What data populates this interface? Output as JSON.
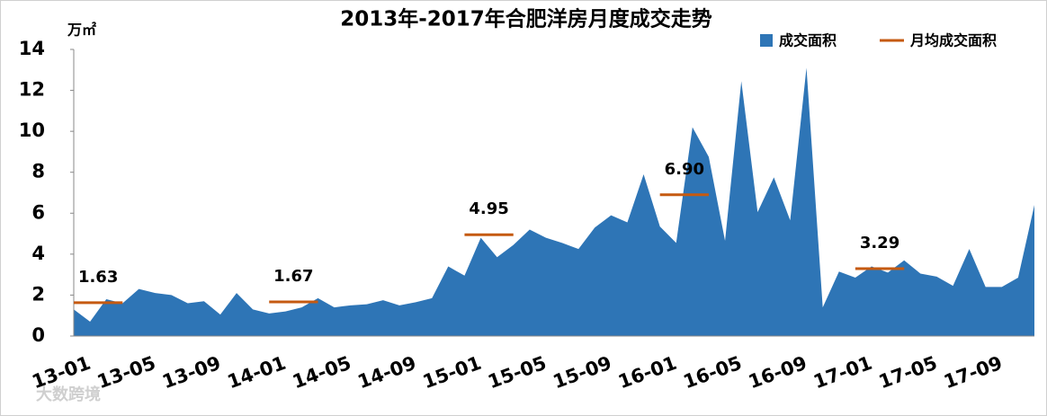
{
  "chart_data": {
    "type": "area",
    "title": "2013年-2017年合肥洋房月度成交走势",
    "y_unit": "万㎡",
    "watermark": "大数跨境",
    "categories": [
      "13-01",
      null,
      null,
      null,
      "13-05",
      null,
      null,
      null,
      "13-09",
      null,
      null,
      null,
      "14-01",
      null,
      null,
      null,
      "14-05",
      null,
      null,
      null,
      "14-09",
      null,
      null,
      null,
      "15-01",
      null,
      null,
      null,
      "15-05",
      null,
      null,
      null,
      "15-09",
      null,
      null,
      null,
      "16-01",
      null,
      null,
      null,
      "16-05",
      null,
      null,
      null,
      "16-09",
      null,
      null,
      null,
      "17-01",
      null,
      null,
      null,
      "17-05",
      null,
      null,
      null,
      "17-09",
      null,
      null,
      null
    ],
    "series": [
      {
        "name": "成交面积",
        "color": "#2e75b6",
        "values": [
          1.3,
          0.7,
          1.8,
          1.6,
          2.3,
          2.1,
          2.0,
          1.6,
          1.7,
          1.05,
          2.1,
          1.3,
          1.1,
          1.2,
          1.4,
          1.85,
          1.4,
          1.5,
          1.55,
          1.75,
          1.5,
          1.65,
          1.85,
          3.4,
          2.95,
          4.8,
          3.85,
          4.45,
          5.2,
          4.8,
          4.55,
          4.25,
          5.3,
          5.9,
          5.55,
          7.9,
          5.35,
          4.55,
          10.2,
          8.75,
          4.65,
          12.45,
          6.05,
          7.75,
          5.65,
          13.1,
          1.4,
          3.15,
          2.85,
          3.4,
          3.1,
          3.7,
          3.05,
          2.9,
          2.45,
          4.25,
          2.4,
          2.4,
          2.85,
          6.4
        ]
      }
    ],
    "averages": {
      "name": "月均成交面积",
      "color": "#c55a11",
      "values": [
        1.63,
        1.67,
        4.95,
        6.9,
        3.29
      ],
      "value_labels": [
        "1.63",
        "1.67",
        "4.95",
        "6.90",
        "3.29"
      ]
    },
    "ylim": [
      0,
      14
    ],
    "yticks": [
      0,
      2,
      4,
      6,
      8,
      10,
      12,
      14
    ],
    "grid": false
  }
}
